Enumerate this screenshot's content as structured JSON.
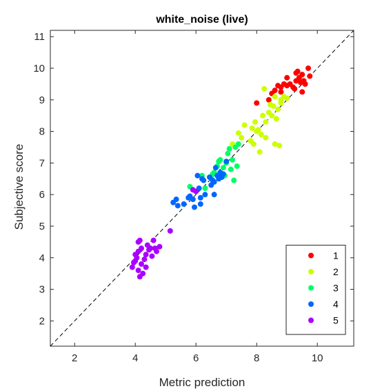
{
  "chart_data": {
    "type": "scatter",
    "title": "white_noise (live)",
    "xlabel": "Metric prediction",
    "ylabel": "Subjective score",
    "xlim": [
      1.2,
      11.2
    ],
    "ylim": [
      1.2,
      11.2
    ],
    "xticks": [
      2,
      4,
      6,
      8,
      10
    ],
    "yticks": [
      2,
      3,
      4,
      5,
      6,
      7,
      8,
      9,
      10,
      11
    ],
    "grid": false,
    "legend_position": "bottom-right",
    "reference_line": {
      "style": "dashed",
      "color": "#000000"
    },
    "series": [
      {
        "name": "1",
        "color": "#FF0000",
        "points": [
          [
            8.0,
            8.9
          ],
          [
            8.4,
            9.0
          ],
          [
            8.5,
            9.2
          ],
          [
            8.6,
            9.3
          ],
          [
            8.7,
            9.45
          ],
          [
            8.8,
            9.4
          ],
          [
            8.9,
            9.5
          ],
          [
            9.0,
            9.45
          ],
          [
            9.1,
            9.5
          ],
          [
            9.2,
            9.4
          ],
          [
            9.3,
            9.6
          ],
          [
            9.3,
            9.85
          ],
          [
            9.35,
            9.9
          ],
          [
            9.4,
            9.7
          ],
          [
            9.45,
            9.55
          ],
          [
            9.5,
            9.8
          ],
          [
            9.5,
            9.25
          ],
          [
            9.55,
            9.6
          ],
          [
            9.6,
            9.5
          ],
          [
            9.7,
            10.0
          ],
          [
            9.75,
            9.75
          ],
          [
            9.25,
            9.35
          ],
          [
            8.8,
            9.25
          ],
          [
            9.0,
            9.7
          ]
        ]
      },
      {
        "name": "2",
        "color": "#CCFF00",
        "points": [
          [
            7.2,
            7.6
          ],
          [
            7.4,
            7.95
          ],
          [
            7.5,
            7.8
          ],
          [
            7.6,
            8.2
          ],
          [
            7.8,
            7.7
          ],
          [
            7.85,
            8.1
          ],
          [
            7.9,
            7.6
          ],
          [
            7.95,
            8.3
          ],
          [
            8.0,
            8.0
          ],
          [
            8.05,
            8.05
          ],
          [
            8.1,
            7.35
          ],
          [
            8.15,
            7.9
          ],
          [
            8.2,
            8.5
          ],
          [
            8.25,
            9.35
          ],
          [
            8.3,
            8.3
          ],
          [
            8.3,
            7.8
          ],
          [
            8.4,
            8.6
          ],
          [
            8.45,
            8.85
          ],
          [
            8.5,
            8.5
          ],
          [
            8.55,
            8.8
          ],
          [
            8.6,
            7.6
          ],
          [
            8.6,
            9.1
          ],
          [
            8.65,
            8.4
          ],
          [
            8.7,
            8.7
          ],
          [
            8.75,
            7.55
          ],
          [
            8.8,
            9.0
          ],
          [
            8.8,
            8.9
          ],
          [
            8.9,
            9.1
          ],
          [
            9.0,
            9.05
          ]
        ]
      },
      {
        "name": "3",
        "color": "#00FF66",
        "points": [
          [
            5.8,
            6.25
          ],
          [
            6.0,
            6.1
          ],
          [
            6.2,
            6.6
          ],
          [
            6.3,
            6.2
          ],
          [
            6.5,
            6.5
          ],
          [
            6.6,
            6.7
          ],
          [
            6.7,
            6.9
          ],
          [
            6.75,
            7.05
          ],
          [
            6.8,
            7.1
          ],
          [
            6.9,
            6.85
          ],
          [
            6.95,
            6.6
          ],
          [
            7.0,
            7.0
          ],
          [
            7.05,
            7.3
          ],
          [
            7.1,
            7.45
          ],
          [
            7.15,
            6.8
          ],
          [
            7.2,
            7.1
          ],
          [
            7.25,
            6.45
          ],
          [
            7.3,
            7.5
          ],
          [
            7.4,
            7.6
          ],
          [
            7.35,
            6.9
          ],
          [
            6.55,
            6.65
          ]
        ]
      },
      {
        "name": "4",
        "color": "#0066FF",
        "points": [
          [
            5.25,
            5.75
          ],
          [
            5.35,
            5.85
          ],
          [
            5.4,
            5.65
          ],
          [
            5.6,
            5.7
          ],
          [
            5.75,
            5.9
          ],
          [
            5.8,
            5.95
          ],
          [
            5.9,
            5.85
          ],
          [
            5.95,
            5.6
          ],
          [
            6.05,
            6.6
          ],
          [
            6.1,
            6.2
          ],
          [
            6.15,
            5.9
          ],
          [
            6.15,
            5.7
          ],
          [
            6.2,
            6.5
          ],
          [
            6.25,
            6.45
          ],
          [
            6.3,
            6.0
          ],
          [
            6.45,
            6.55
          ],
          [
            6.5,
            6.3
          ],
          [
            6.55,
            6.45
          ],
          [
            6.6,
            6.4
          ],
          [
            6.65,
            6.85
          ],
          [
            6.7,
            6.6
          ],
          [
            6.75,
            6.5
          ],
          [
            6.8,
            6.7
          ],
          [
            6.85,
            6.55
          ],
          [
            6.9,
            6.65
          ],
          [
            7.0,
            7.05
          ],
          [
            6.6,
            6.0
          ]
        ]
      },
      {
        "name": "5",
        "color": "#AA00FF",
        "points": [
          [
            3.9,
            3.7
          ],
          [
            3.95,
            3.85
          ],
          [
            4.0,
            3.9
          ],
          [
            4.05,
            4.0
          ],
          [
            4.1,
            3.6
          ],
          [
            4.1,
            4.2
          ],
          [
            4.1,
            4.5
          ],
          [
            4.15,
            3.4
          ],
          [
            4.15,
            4.55
          ],
          [
            4.2,
            3.8
          ],
          [
            4.2,
            4.3
          ],
          [
            4.25,
            3.5
          ],
          [
            4.3,
            3.95
          ],
          [
            4.35,
            3.7
          ],
          [
            4.35,
            4.1
          ],
          [
            4.4,
            4.4
          ],
          [
            4.45,
            4.25
          ],
          [
            4.5,
            4.3
          ],
          [
            4.55,
            4.05
          ],
          [
            4.6,
            4.55
          ],
          [
            4.65,
            4.3
          ],
          [
            4.7,
            4.2
          ],
          [
            4.8,
            4.35
          ],
          [
            5.15,
            4.85
          ],
          [
            5.9,
            6.15
          ],
          [
            6.0,
            6.1
          ],
          [
            4.0,
            4.1
          ]
        ]
      }
    ]
  }
}
